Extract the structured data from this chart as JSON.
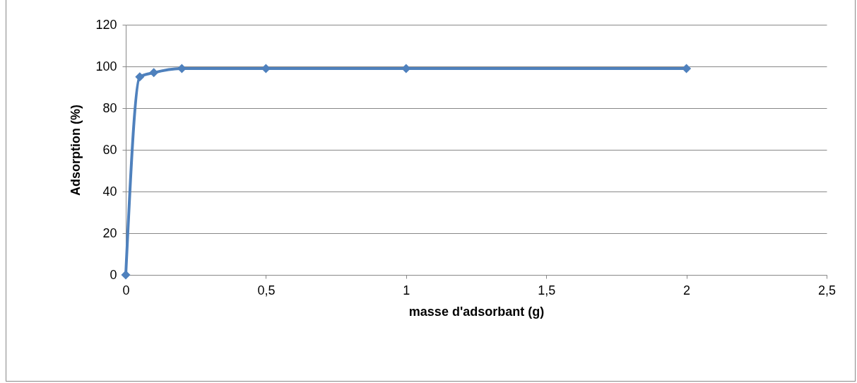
{
  "chart_data": {
    "type": "line",
    "xlabel": "masse d'adsorbant (g)",
    "ylabel": "Adsorption (%)",
    "x": [
      0,
      0.05,
      0.1,
      0.2,
      0.5,
      1,
      2
    ],
    "series": [
      {
        "color": "#4f81bd",
        "values": [
          0,
          95,
          97,
          99,
          99,
          99,
          99
        ]
      }
    ],
    "xlim": [
      0,
      2.5
    ],
    "xticks": [
      0,
      {
        "value": 0.5,
        "label": "0,5"
      },
      1,
      {
        "value": 1.5,
        "label": "1,5"
      },
      2,
      {
        "value": 2.5,
        "label": "2,5"
      }
    ],
    "ylim": [
      0,
      120
    ],
    "yticks": [
      0,
      20,
      40,
      60,
      80,
      100,
      120
    ],
    "grid": "y",
    "marker": "diamond",
    "line_style": "solid"
  }
}
